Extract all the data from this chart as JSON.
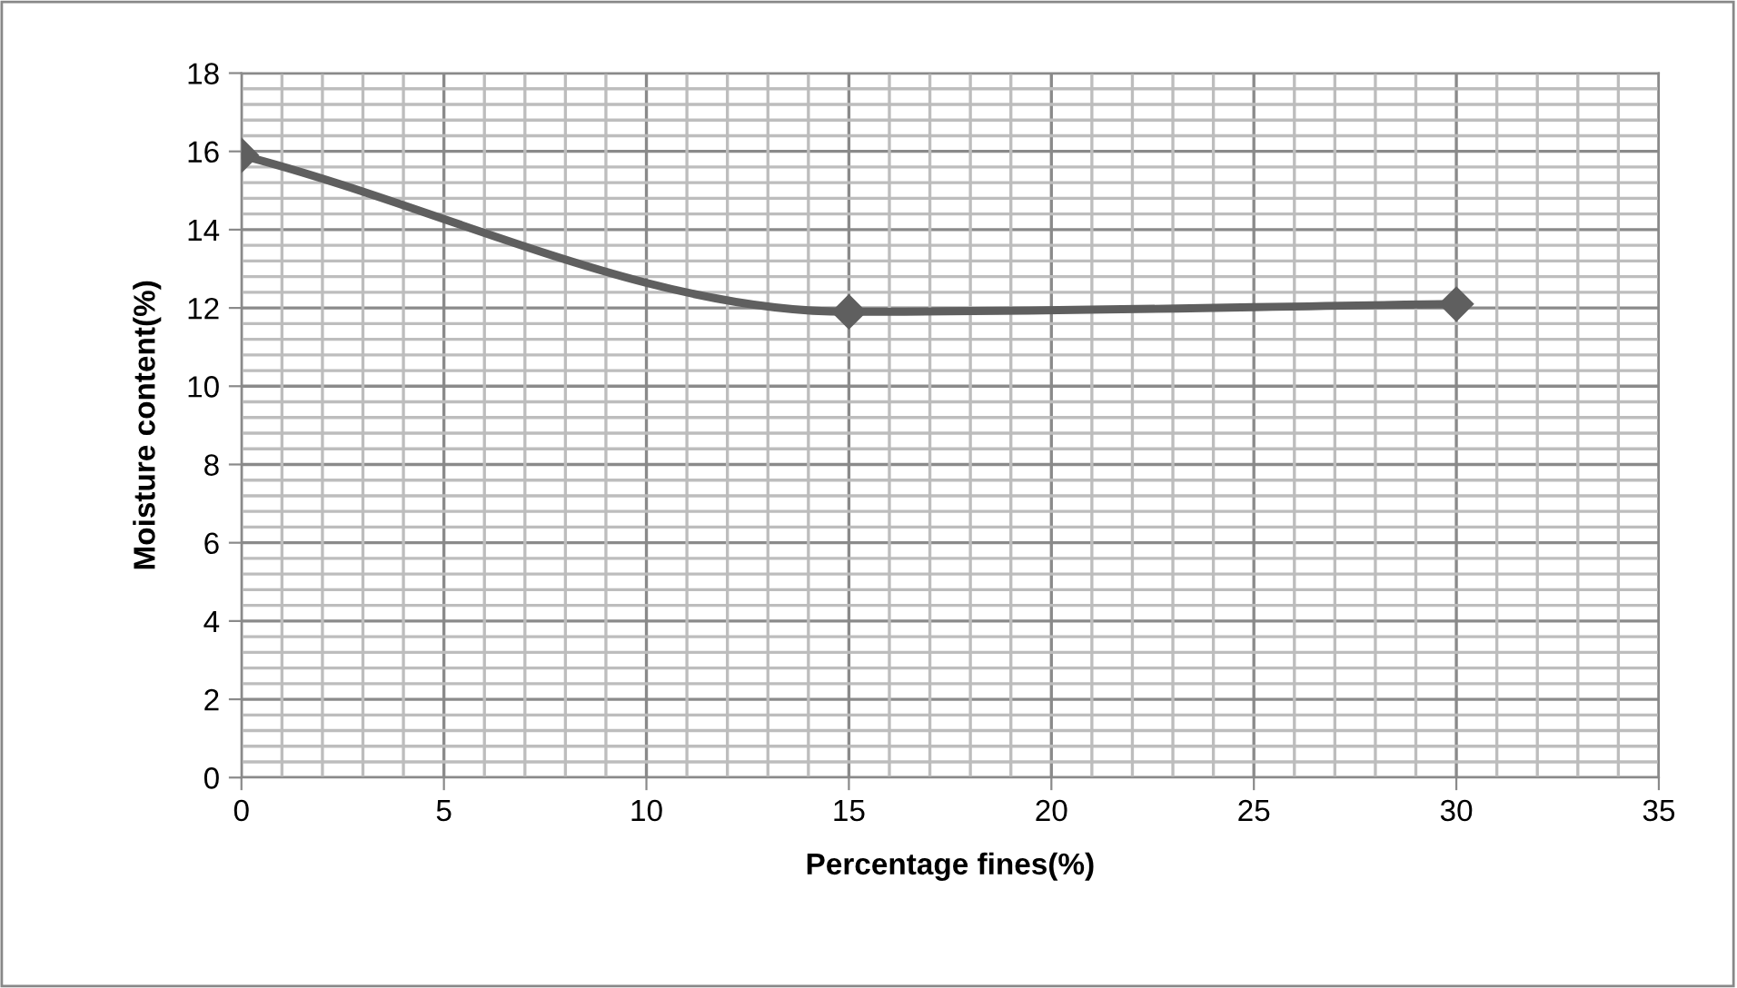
{
  "chart_data": {
    "type": "line",
    "xlabel": "Percentage fines(%)",
    "ylabel": "Moisture content(%)",
    "x": [
      0,
      15,
      30
    ],
    "series": [
      {
        "color": "#5f5f5f",
        "values": [
          15.9,
          11.9,
          12.1
        ]
      }
    ],
    "xlim": [
      0,
      35
    ],
    "xticks": [
      0,
      5,
      10,
      15,
      20,
      25,
      30,
      35
    ],
    "ylim": [
      0,
      18
    ],
    "yticks": [
      0,
      2,
      4,
      6,
      8,
      10,
      12,
      14,
      16,
      18
    ],
    "grid": true,
    "marker": "diamond",
    "line_style": "solid",
    "legend": false
  }
}
